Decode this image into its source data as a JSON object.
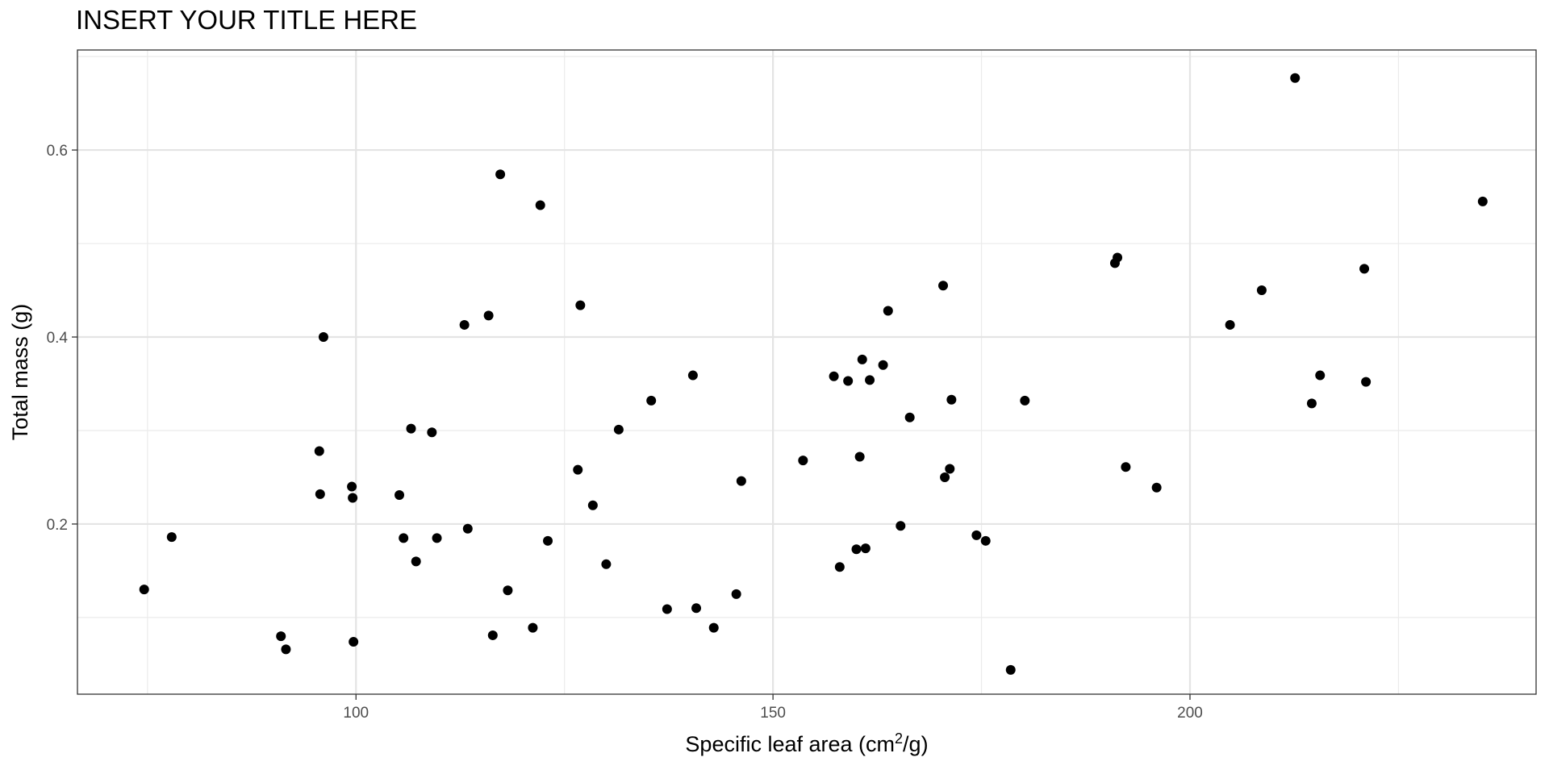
{
  "chart_data": {
    "type": "scatter",
    "title": "INSERT YOUR TITLE HERE",
    "xlabel": "Specific leaf area (cm²/g)",
    "xlabel_parts": {
      "text": "Specific leaf area ",
      "unit_prefix": "(cm",
      "superscript": "2",
      "unit_suffix": "/g)"
    },
    "ylabel": "Total mass (g)",
    "xlim": [
      66.6,
      241.5
    ],
    "ylim": [
      0.018,
      0.707
    ],
    "xticks": [
      100,
      150,
      200
    ],
    "xtick_labels": [
      "100",
      "150",
      "200"
    ],
    "yticks": [
      0.2,
      0.4,
      0.6
    ],
    "ytick_labels": [
      "0.2",
      "0.4",
      "0.6"
    ],
    "grid": true,
    "point_color": "#000000",
    "points": [
      {
        "x": 74.6,
        "y": 0.13
      },
      {
        "x": 77.9,
        "y": 0.186
      },
      {
        "x": 91.0,
        "y": 0.08
      },
      {
        "x": 91.6,
        "y": 0.066
      },
      {
        "x": 95.6,
        "y": 0.278
      },
      {
        "x": 95.7,
        "y": 0.232
      },
      {
        "x": 96.1,
        "y": 0.4
      },
      {
        "x": 99.5,
        "y": 0.24
      },
      {
        "x": 99.6,
        "y": 0.228
      },
      {
        "x": 99.7,
        "y": 0.074
      },
      {
        "x": 105.2,
        "y": 0.231
      },
      {
        "x": 105.7,
        "y": 0.185
      },
      {
        "x": 106.6,
        "y": 0.302
      },
      {
        "x": 107.2,
        "y": 0.16
      },
      {
        "x": 109.1,
        "y": 0.298
      },
      {
        "x": 109.7,
        "y": 0.185
      },
      {
        "x": 113.0,
        "y": 0.413
      },
      {
        "x": 113.4,
        "y": 0.195
      },
      {
        "x": 115.9,
        "y": 0.423
      },
      {
        "x": 116.4,
        "y": 0.081
      },
      {
        "x": 117.3,
        "y": 0.574
      },
      {
        "x": 118.2,
        "y": 0.129
      },
      {
        "x": 121.2,
        "y": 0.089
      },
      {
        "x": 122.1,
        "y": 0.541
      },
      {
        "x": 123.0,
        "y": 0.182
      },
      {
        "x": 126.6,
        "y": 0.258
      },
      {
        "x": 126.9,
        "y": 0.434
      },
      {
        "x": 128.4,
        "y": 0.22
      },
      {
        "x": 130.0,
        "y": 0.157
      },
      {
        "x": 131.5,
        "y": 0.301
      },
      {
        "x": 135.4,
        "y": 0.332
      },
      {
        "x": 137.3,
        "y": 0.109
      },
      {
        "x": 140.4,
        "y": 0.359
      },
      {
        "x": 140.8,
        "y": 0.11
      },
      {
        "x": 142.9,
        "y": 0.089
      },
      {
        "x": 145.6,
        "y": 0.125
      },
      {
        "x": 146.2,
        "y": 0.246
      },
      {
        "x": 153.6,
        "y": 0.268
      },
      {
        "x": 157.3,
        "y": 0.358
      },
      {
        "x": 158.0,
        "y": 0.154
      },
      {
        "x": 159.0,
        "y": 0.353
      },
      {
        "x": 160.0,
        "y": 0.173
      },
      {
        "x": 160.4,
        "y": 0.272
      },
      {
        "x": 160.7,
        "y": 0.376
      },
      {
        "x": 161.1,
        "y": 0.174
      },
      {
        "x": 161.6,
        "y": 0.354
      },
      {
        "x": 163.2,
        "y": 0.37
      },
      {
        "x": 163.8,
        "y": 0.428
      },
      {
        "x": 165.3,
        "y": 0.198
      },
      {
        "x": 166.4,
        "y": 0.314
      },
      {
        "x": 170.4,
        "y": 0.455
      },
      {
        "x": 170.6,
        "y": 0.25
      },
      {
        "x": 171.2,
        "y": 0.259
      },
      {
        "x": 171.4,
        "y": 0.333
      },
      {
        "x": 174.4,
        "y": 0.188
      },
      {
        "x": 175.5,
        "y": 0.182
      },
      {
        "x": 178.5,
        "y": 0.044
      },
      {
        "x": 180.2,
        "y": 0.332
      },
      {
        "x": 191.0,
        "y": 0.479
      },
      {
        "x": 191.3,
        "y": 0.485
      },
      {
        "x": 192.3,
        "y": 0.261
      },
      {
        "x": 196.0,
        "y": 0.239
      },
      {
        "x": 204.8,
        "y": 0.413
      },
      {
        "x": 208.6,
        "y": 0.45
      },
      {
        "x": 212.6,
        "y": 0.677
      },
      {
        "x": 214.6,
        "y": 0.329
      },
      {
        "x": 215.6,
        "y": 0.359
      },
      {
        "x": 220.9,
        "y": 0.473
      },
      {
        "x": 221.1,
        "y": 0.352
      },
      {
        "x": 235.1,
        "y": 0.545
      }
    ]
  }
}
